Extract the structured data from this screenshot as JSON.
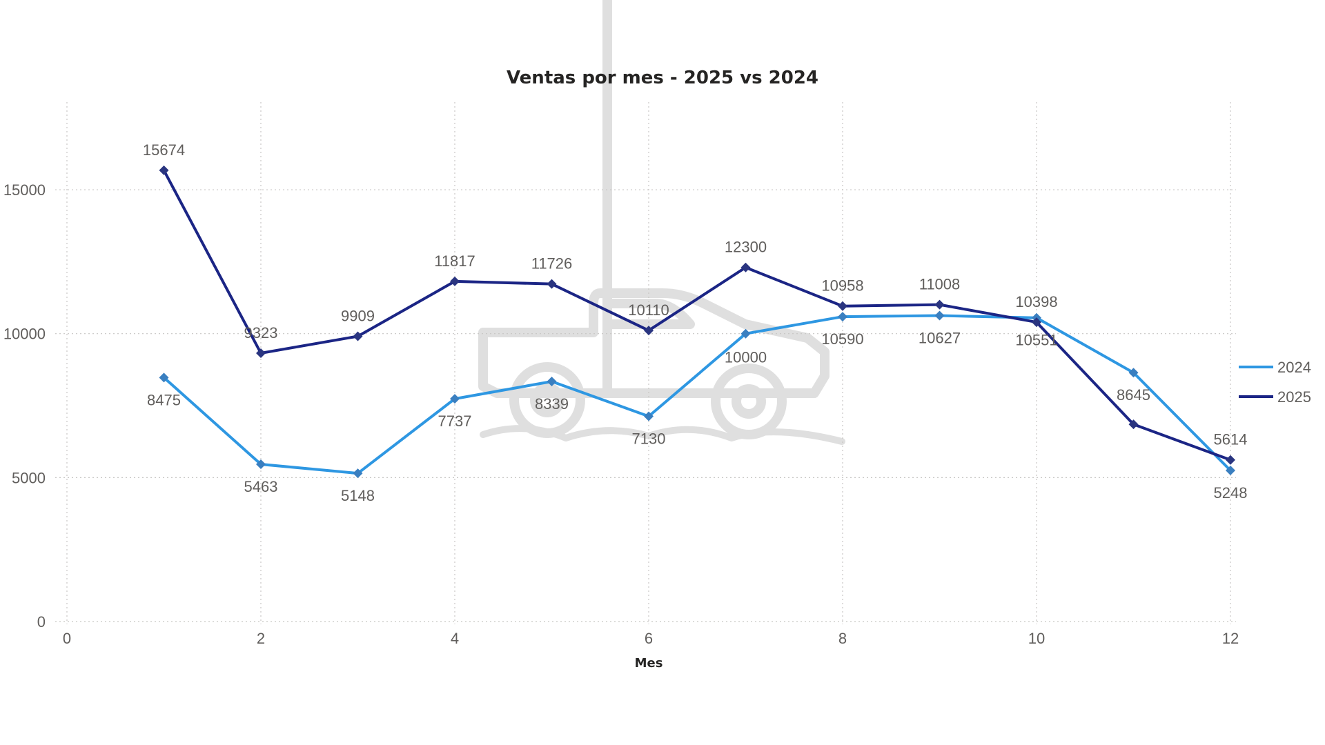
{
  "chart_data": {
    "type": "line",
    "title": "Ventas por mes - 2025 vs 2024",
    "xlabel": "Mes",
    "ylabel": "",
    "x": [
      1,
      2,
      3,
      4,
      5,
      6,
      7,
      8,
      9,
      10,
      11,
      12
    ],
    "xlim": [
      0,
      12
    ],
    "ylim": [
      0,
      18000
    ],
    "x_ticks": [
      0,
      2,
      4,
      6,
      8,
      10,
      12
    ],
    "y_ticks": [
      0,
      5000,
      10000,
      15000
    ],
    "grid": true,
    "legend_position": "right",
    "series": [
      {
        "name": "2024",
        "color": "#2e97e2",
        "values": [
          8475,
          5463,
          5148,
          7737,
          8339,
          7130,
          10000,
          10590,
          10627,
          10551,
          8645,
          5248
        ],
        "labels": [
          "8475",
          "5463",
          "5148",
          "7737",
          "8339",
          "7130",
          "10000",
          "10590",
          "10627",
          "10551",
          "8645",
          "5248"
        ],
        "label_pos": [
          "below",
          "below",
          "below",
          "below",
          "below",
          "below",
          "above-label-10000",
          "below",
          "below",
          "below",
          "below",
          "below"
        ]
      },
      {
        "name": "2025",
        "color": "#1b2585",
        "values": [
          15674,
          9323,
          9909,
          11817,
          11726,
          10110,
          12300,
          10958,
          11008,
          10398,
          6850,
          5614
        ],
        "labels": [
          "15674",
          "9323",
          "9909",
          "11817",
          "11726",
          "10110",
          "12300",
          "10958",
          "11008",
          "10398",
          "",
          "5614"
        ],
        "label_pos": [
          "above",
          "above",
          "above",
          "above",
          "above",
          "above",
          "above",
          "above",
          "above",
          "above",
          "none",
          "above"
        ]
      }
    ],
    "watermark": "pickup-truck-silhouette"
  },
  "legend": {
    "items": [
      {
        "label": "2024",
        "color": "#2e97e2"
      },
      {
        "label": "2025",
        "color": "#1b2585"
      }
    ]
  }
}
